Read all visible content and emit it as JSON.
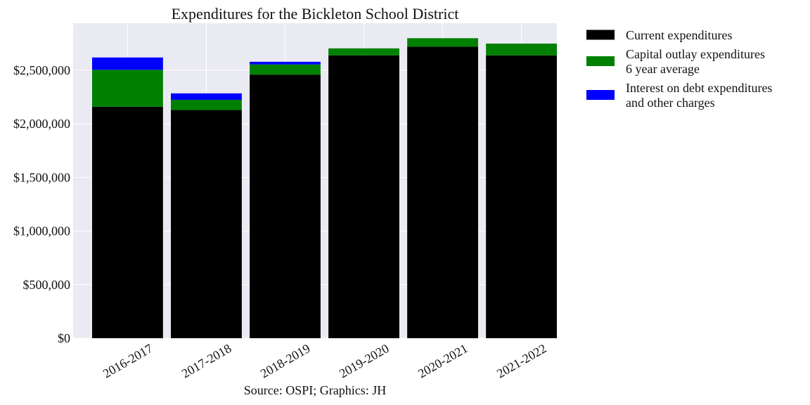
{
  "chart_data": {
    "type": "bar",
    "stacked": true,
    "title": "Expenditures for the Bickleton School District",
    "source": "Source: OSPI; Graphics: JH",
    "xlabel": "",
    "ylabel": "",
    "categories": [
      "2016-2017",
      "2017-2018",
      "2018-2019",
      "2019-2020",
      "2020-2021",
      "2021-2022"
    ],
    "ylim": [
      0,
      2940000
    ],
    "yticks": [
      0,
      500000,
      1000000,
      1500000,
      2000000,
      2500000
    ],
    "ytick_labels": [
      "$0",
      "$500,000",
      "$1,000,000",
      "$1,500,000",
      "$2,000,000",
      "$2,500,000"
    ],
    "grid": true,
    "legend_position": "outside-right",
    "series": [
      {
        "legend_lines": [
          "Current expenditures"
        ],
        "color": "#000000",
        "values": [
          2160000,
          2130000,
          2460000,
          2640000,
          2720000,
          2640000
        ]
      },
      {
        "legend_lines": [
          "Capital outlay expenditures",
          "6 year average"
        ],
        "color": "#008000",
        "values": [
          345000,
          95000,
          95000,
          65000,
          80000,
          110000
        ]
      },
      {
        "legend_lines": [
          "Interest on debt expenditures",
          "and other charges"
        ],
        "color": "#0000ff",
        "values": [
          115000,
          60000,
          25000,
          0,
          0,
          0
        ]
      }
    ],
    "colors": {
      "plot_background": "#eaeaf2",
      "grid": "#ffffff",
      "text": "#111111"
    }
  }
}
